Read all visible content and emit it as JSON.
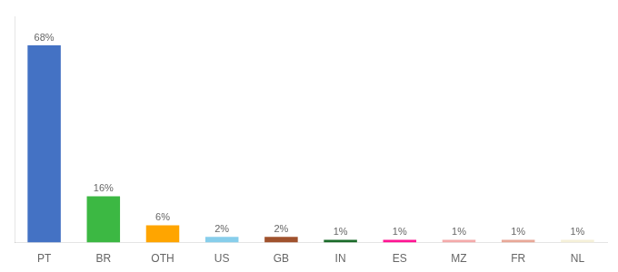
{
  "chart_data": {
    "type": "bar",
    "categories": [
      "PT",
      "BR",
      "OTH",
      "US",
      "GB",
      "IN",
      "ES",
      "MZ",
      "FR",
      "NL"
    ],
    "values": [
      68,
      16,
      6,
      2,
      2,
      1,
      1,
      1,
      1,
      1
    ],
    "value_labels": [
      "68%",
      "16%",
      "6%",
      "2%",
      "2%",
      "1%",
      "1%",
      "1%",
      "1%",
      "1%"
    ],
    "colors": [
      "#4472C4",
      "#3CB843",
      "#FFA500",
      "#87CEEB",
      "#A0522D",
      "#1B6B2A",
      "#FF1493",
      "#F4AAAA",
      "#E8A898",
      "#F5F0D8"
    ],
    "ylim": [
      0,
      78
    ],
    "grid": false,
    "tick_labels": "x"
  }
}
